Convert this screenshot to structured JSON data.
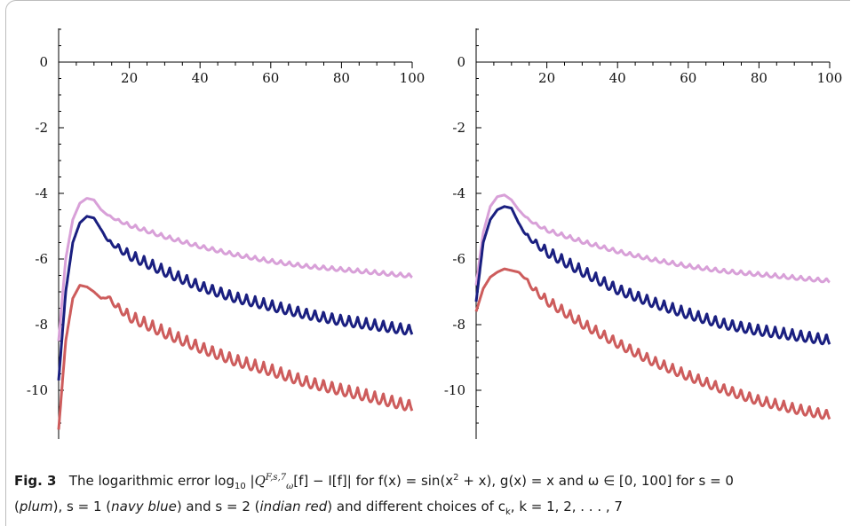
{
  "chart_data": [
    {
      "type": "line",
      "panel": "left",
      "xlim": [
        0,
        100
      ],
      "ylim": [
        -11.2,
        1.0
      ],
      "x_ticks": [
        "20",
        "40",
        "60",
        "80",
        "100"
      ],
      "y_ticks": [
        "0",
        "-2",
        "-4",
        "-6",
        "-8",
        "-10"
      ],
      "grid": false,
      "series": [
        {
          "name": "plum",
          "color": "#d8a0d8",
          "oscillation": 0.12,
          "x": [
            0,
            2,
            4,
            6,
            8,
            10,
            12,
            14,
            16,
            20,
            30,
            40,
            50,
            60,
            70,
            80,
            90,
            100
          ],
          "y": [
            -8.5,
            -6.0,
            -4.8,
            -4.3,
            -4.15,
            -4.2,
            -4.5,
            -4.65,
            -4.75,
            -4.9,
            -5.25,
            -5.55,
            -5.8,
            -6.0,
            -6.15,
            -6.25,
            -6.35,
            -6.45
          ]
        },
        {
          "name": "navy blue",
          "color": "#1a1f80",
          "oscillation": 0.32,
          "x": [
            0,
            2,
            4,
            6,
            8,
            10,
            12,
            14,
            16,
            20,
            30,
            40,
            50,
            60,
            70,
            80,
            90,
            100
          ],
          "y": [
            -9.7,
            -7.0,
            -5.5,
            -4.9,
            -4.7,
            -4.75,
            -5.1,
            -5.4,
            -5.5,
            -5.7,
            -6.2,
            -6.65,
            -7.0,
            -7.25,
            -7.5,
            -7.7,
            -7.85,
            -8.0
          ]
        },
        {
          "name": "indian red",
          "color": "#cd5c5c",
          "oscillation": 0.35,
          "x": [
            0,
            2,
            4,
            6,
            8,
            10,
            12,
            14,
            16,
            20,
            30,
            40,
            50,
            60,
            70,
            80,
            90,
            100
          ],
          "y": [
            -11.2,
            -8.5,
            -7.2,
            -6.8,
            -6.85,
            -7.0,
            -7.2,
            -7.1,
            -7.3,
            -7.55,
            -8.05,
            -8.5,
            -8.9,
            -9.2,
            -9.55,
            -9.8,
            -10.05,
            -10.3
          ]
        }
      ]
    },
    {
      "type": "line",
      "panel": "right",
      "xlim": [
        0,
        100
      ],
      "ylim": [
        -11.2,
        1.0
      ],
      "x_ticks": [
        "20",
        "40",
        "60",
        "80",
        "100"
      ],
      "y_ticks": [
        "0",
        "-2",
        "-4",
        "-6",
        "-8",
        "-10"
      ],
      "grid": false,
      "series": [
        {
          "name": "plum",
          "color": "#d8a0d8",
          "oscillation": 0.12,
          "x": [
            0,
            2,
            4,
            6,
            8,
            10,
            12,
            14,
            16,
            20,
            30,
            40,
            50,
            60,
            70,
            80,
            90,
            100
          ],
          "y": [
            -6.8,
            -5.2,
            -4.4,
            -4.1,
            -4.05,
            -4.2,
            -4.5,
            -4.7,
            -4.85,
            -5.05,
            -5.4,
            -5.7,
            -5.95,
            -6.15,
            -6.3,
            -6.4,
            -6.5,
            -6.6
          ]
        },
        {
          "name": "navy blue",
          "color": "#1a1f80",
          "oscillation": 0.32,
          "x": [
            0,
            2,
            4,
            6,
            8,
            10,
            12,
            14,
            16,
            20,
            30,
            40,
            50,
            60,
            70,
            80,
            90,
            100
          ],
          "y": [
            -7.3,
            -5.5,
            -4.8,
            -4.5,
            -4.4,
            -4.45,
            -4.9,
            -5.2,
            -5.35,
            -5.6,
            -6.2,
            -6.75,
            -7.15,
            -7.5,
            -7.8,
            -8.0,
            -8.15,
            -8.3
          ]
        },
        {
          "name": "indian red",
          "color": "#cd5c5c",
          "oscillation": 0.3,
          "x": [
            0,
            2,
            4,
            6,
            8,
            10,
            12,
            14,
            16,
            20,
            30,
            40,
            50,
            60,
            70,
            80,
            90,
            100
          ],
          "y": [
            -7.6,
            -6.9,
            -6.55,
            -6.4,
            -6.3,
            -6.35,
            -6.4,
            -6.55,
            -6.8,
            -7.1,
            -7.8,
            -8.4,
            -8.95,
            -9.4,
            -9.8,
            -10.15,
            -10.4,
            -10.6
          ]
        }
      ]
    }
  ],
  "caption": {
    "label": "Fig. 3",
    "text_1": "The logarithmic error log",
    "sub_10": "10",
    "text_2": " |",
    "Q": "Q",
    "Q_sup": "F,s,7",
    "Q_sub": "ω",
    "text_3": "[f] − I[f]| for ",
    "f_def": "f(x) = sin(x",
    "sq": "2",
    "text_4": " + x), g(x) = x and ω ∈ [0, 100] for s = 0",
    "line2_a": "(",
    "plum": "plum",
    "line2_b": "), s = 1 (",
    "navy": "navy blue",
    "line2_c": ") and s = 2 (",
    "red": "indian red",
    "line2_d": ") and different choices of c",
    "ck_sub": "k",
    "line2_e": ", k = 1, 2, . . . , 7"
  }
}
